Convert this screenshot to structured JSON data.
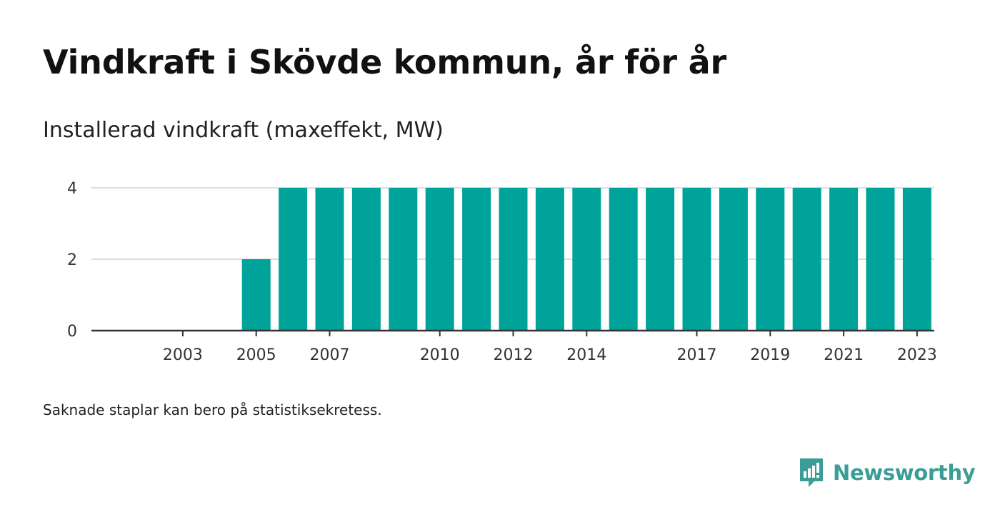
{
  "header": {
    "title": "Vindkraft i Skövde kommun, år för år",
    "subtitle": "Installerad vindkraft (maxeffekt, MW)"
  },
  "footnote": "Saknade staplar kan bero på statistiksekretess.",
  "brand": {
    "name": "Newsworthy",
    "color": "#3a9e96",
    "icon": "newsworthy-logo-icon"
  },
  "colors": {
    "bar": "#00a39a",
    "grid": "#dddddd",
    "axis": "#333333"
  },
  "chart_data": {
    "type": "bar",
    "title": "Vindkraft i Skövde kommun, år för år",
    "ylabel": "Installerad vindkraft (maxeffekt, MW)",
    "categories": [
      "2002",
      "2003",
      "2004",
      "2005",
      "2006",
      "2007",
      "2008",
      "2009",
      "2010",
      "2011",
      "2012",
      "2013",
      "2014",
      "2015",
      "2016",
      "2017",
      "2018",
      "2019",
      "2020",
      "2021",
      "2022",
      "2023"
    ],
    "values": [
      null,
      null,
      null,
      2,
      4,
      4,
      4,
      4,
      4,
      4,
      4,
      4,
      4,
      4,
      4,
      4,
      4,
      4,
      4,
      4,
      4,
      4
    ],
    "x_tick_labels": [
      "2003",
      "2005",
      "2007",
      "2010",
      "2012",
      "2014",
      "2017",
      "2019",
      "2021",
      "2023"
    ],
    "y_ticks": [
      0,
      2,
      4
    ],
    "ylim": [
      0,
      4
    ],
    "grid": true,
    "legend": "none"
  }
}
